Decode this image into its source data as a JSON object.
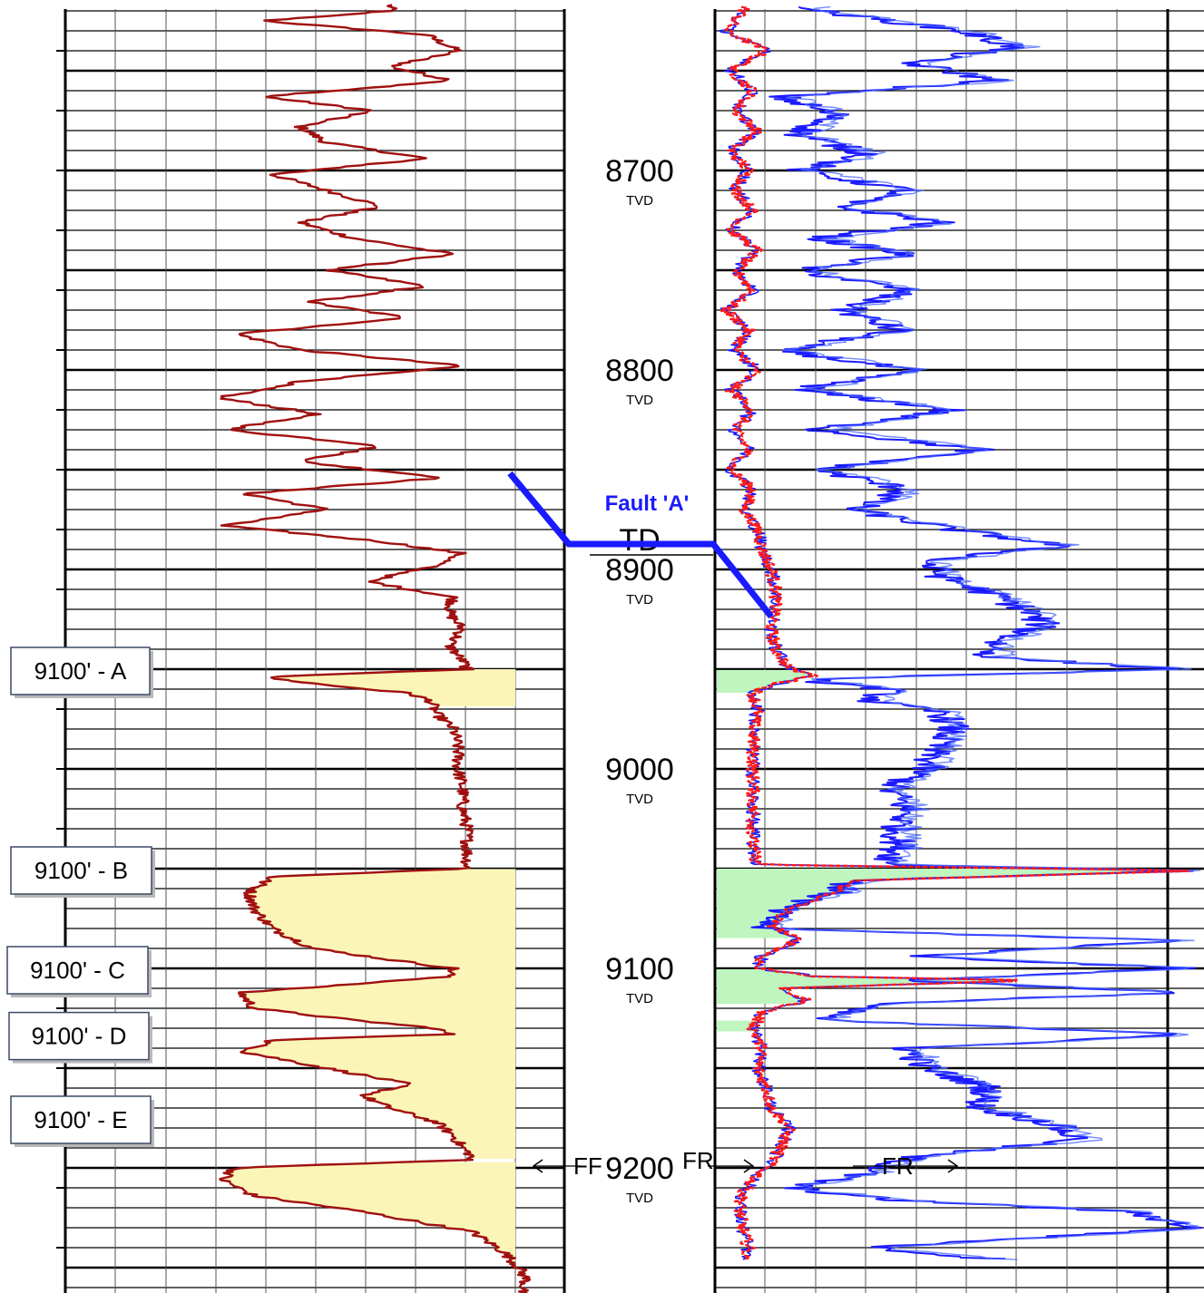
{
  "chart_data": {
    "type": "line",
    "depth_ticks": [
      {
        "value": 8700,
        "label": "8700",
        "unit": "TVD"
      },
      {
        "value": 8800,
        "label": "8800",
        "unit": "TVD"
      },
      {
        "value": 8900,
        "label": "8900",
        "unit": "TVD"
      },
      {
        "value": 9000,
        "label": "9000",
        "unit": "TVD"
      },
      {
        "value": 9100,
        "label": "9100",
        "unit": "TVD"
      },
      {
        "value": 9200,
        "label": "9200",
        "unit": "TVD"
      }
    ],
    "depth_range": [
      8620,
      9260
    ],
    "fault": {
      "label": "Fault 'A'",
      "depth": 8890,
      "color": "#1a1aff"
    },
    "td_label": "TD",
    "curve_labels": [
      "FF",
      "FR",
      "FR"
    ],
    "zones": [
      {
        "label": "9100' - A",
        "top": 8950,
        "base": 8990
      },
      {
        "label": "9100' - B",
        "top": 9050,
        "base": 9125
      },
      {
        "label": "9100' - C",
        "top": 9100,
        "base": 9133
      },
      {
        "label": "9100' - D",
        "top": 9133,
        "base": 9177
      },
      {
        "label": "9100' - E",
        "top": 9195,
        "base": 9254
      }
    ],
    "colors": {
      "left_curve": "#a01010",
      "right_curve_deep": "#1a1aff",
      "right_curve_shallow": "#ff1a1a",
      "sand_fill_left": "#fbf6b8",
      "sand_fill_right": "#bff5bf",
      "grid": "#000000"
    },
    "grid": true
  }
}
